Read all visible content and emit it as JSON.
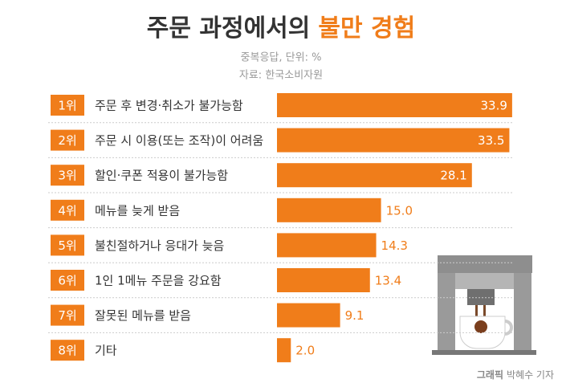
{
  "chart_data": {
    "type": "bar",
    "title": "주문 과정에서의",
    "title_highlight": "불만 경험",
    "subtitle": [
      "중복응답, 단위: %",
      "자료: 한국소비자원"
    ],
    "ranks": [
      "1위",
      "2위",
      "3위",
      "4위",
      "5위",
      "6위",
      "7위",
      "8위"
    ],
    "categories": [
      "주문 후 변경·취소가 불가능함",
      "주문 시 이용(또는 조작)이 어려움",
      "할인·쿠폰 적용이 불가능함",
      "메뉴를 늦게 받음",
      "불친절하거나 응대가 늦음",
      "1인 1메뉴 주문을 강요함",
      "잘못된 메뉴를 받음",
      "기타"
    ],
    "values": [
      33.9,
      33.5,
      28.1,
      15.0,
      14.3,
      13.4,
      9.1,
      2.0
    ],
    "value_labels": [
      "33.9",
      "33.5",
      "28.1",
      "15.0",
      "14.3",
      "13.4",
      "9.1",
      "2.0"
    ],
    "color": "#f07d1a",
    "credit": [
      "그래픽",
      "박혜수 기자"
    ]
  }
}
